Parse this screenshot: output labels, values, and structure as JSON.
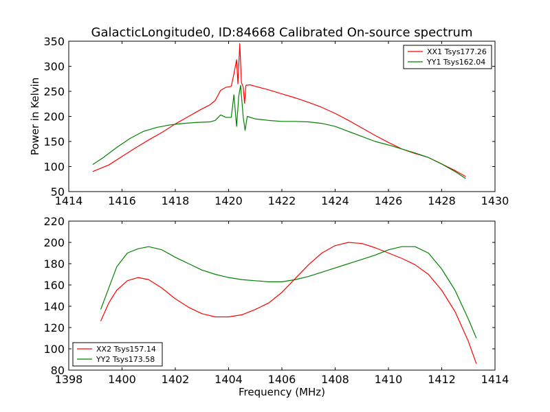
{
  "title": "GalacticLongitude0, ID:84668 Calibrated On-source spectrum",
  "colors": {
    "xx": "#ff0000",
    "yy": "#008000"
  },
  "chart_data": [
    {
      "type": "line",
      "xlim": [
        1414,
        1430
      ],
      "ylim": [
        50,
        350
      ],
      "xticks": [
        1414,
        1416,
        1418,
        1420,
        1422,
        1424,
        1426,
        1428,
        1430
      ],
      "yticks": [
        50,
        100,
        150,
        200,
        250,
        300,
        350
      ],
      "xlabel": "",
      "ylabel": "Power in Kelvin",
      "legend": "top-right",
      "grid": false,
      "series": [
        {
          "name": "XX1 Tsys177.26",
          "color": "#ff0000",
          "points": [
            [
              1414.9,
              90
            ],
            [
              1415.5,
              103
            ],
            [
              1416.0,
              120
            ],
            [
              1416.5,
              137
            ],
            [
              1417.0,
              153
            ],
            [
              1417.5,
              168
            ],
            [
              1418.0,
              185
            ],
            [
              1418.5,
              200
            ],
            [
              1419.0,
              215
            ],
            [
              1419.3,
              223
            ],
            [
              1419.5,
              232
            ],
            [
              1419.7,
              252
            ],
            [
              1419.9,
              258
            ],
            [
              1420.1,
              260
            ],
            [
              1420.2,
              285
            ],
            [
              1420.3,
              313
            ],
            [
              1420.35,
              265
            ],
            [
              1420.42,
              345
            ],
            [
              1420.48,
              268
            ],
            [
              1420.55,
              258
            ],
            [
              1420.6,
              226
            ],
            [
              1420.65,
              262
            ],
            [
              1420.8,
              263
            ],
            [
              1421.0,
              260
            ],
            [
              1421.5,
              253
            ],
            [
              1422.0,
              245
            ],
            [
              1422.5,
              237
            ],
            [
              1423.0,
              228
            ],
            [
              1423.5,
              218
            ],
            [
              1424.0,
              206
            ],
            [
              1424.5,
              192
            ],
            [
              1425.0,
              177
            ],
            [
              1425.5,
              162
            ],
            [
              1426.0,
              148
            ],
            [
              1426.5,
              135
            ],
            [
              1427.0,
              126
            ],
            [
              1427.5,
              118
            ],
            [
              1428.0,
              105
            ],
            [
              1428.5,
              92
            ],
            [
              1428.9,
              80
            ]
          ]
        },
        {
          "name": "YY1 Tsys162.04",
          "color": "#008000",
          "points": [
            [
              1414.9,
              104
            ],
            [
              1415.3,
              118
            ],
            [
              1415.8,
              138
            ],
            [
              1416.3,
              156
            ],
            [
              1416.8,
              170
            ],
            [
              1417.3,
              178
            ],
            [
              1417.8,
              183
            ],
            [
              1418.3,
              186
            ],
            [
              1418.8,
              188
            ],
            [
              1419.3,
              189
            ],
            [
              1419.5,
              192
            ],
            [
              1419.7,
              203
            ],
            [
              1419.9,
              198
            ],
            [
              1420.1,
              198
            ],
            [
              1420.2,
              243
            ],
            [
              1420.3,
              180
            ],
            [
              1420.38,
              240
            ],
            [
              1420.45,
              262
            ],
            [
              1420.55,
              198
            ],
            [
              1420.62,
              172
            ],
            [
              1420.7,
              200
            ],
            [
              1421.0,
              195
            ],
            [
              1421.5,
              192
            ],
            [
              1422.0,
              190
            ],
            [
              1422.5,
              190
            ],
            [
              1423.0,
              189
            ],
            [
              1423.5,
              186
            ],
            [
              1424.0,
              180
            ],
            [
              1424.5,
              170
            ],
            [
              1425.0,
              160
            ],
            [
              1425.5,
              150
            ],
            [
              1426.0,
              143
            ],
            [
              1426.5,
              135
            ],
            [
              1427.0,
              127
            ],
            [
              1427.5,
              118
            ],
            [
              1428.0,
              105
            ],
            [
              1428.5,
              90
            ],
            [
              1428.9,
              76
            ]
          ]
        }
      ]
    },
    {
      "type": "line",
      "xlim": [
        1398,
        1414
      ],
      "ylim": [
        80,
        220
      ],
      "xticks": [
        1398,
        1400,
        1402,
        1404,
        1406,
        1408,
        1410,
        1412,
        1414
      ],
      "yticks": [
        80,
        100,
        120,
        140,
        160,
        180,
        200,
        220
      ],
      "xlabel": "Frequency (MHz)",
      "ylabel": "",
      "legend": "bottom-left",
      "grid": false,
      "series": [
        {
          "name": "XX2 Tsys157.14",
          "color": "#ff0000",
          "points": [
            [
              1399.2,
              126
            ],
            [
              1399.5,
              143
            ],
            [
              1399.8,
              155
            ],
            [
              1400.2,
              164
            ],
            [
              1400.6,
              167
            ],
            [
              1401.0,
              165
            ],
            [
              1401.5,
              157
            ],
            [
              1402.0,
              147
            ],
            [
              1402.5,
              139
            ],
            [
              1403.0,
              133
            ],
            [
              1403.5,
              130
            ],
            [
              1404.0,
              130
            ],
            [
              1404.5,
              132
            ],
            [
              1405.0,
              137
            ],
            [
              1405.5,
              143
            ],
            [
              1406.0,
              153
            ],
            [
              1406.5,
              166
            ],
            [
              1407.0,
              179
            ],
            [
              1407.5,
              190
            ],
            [
              1408.0,
              197
            ],
            [
              1408.5,
              200
            ],
            [
              1409.0,
              199
            ],
            [
              1409.5,
              195
            ],
            [
              1410.0,
              190
            ],
            [
              1410.5,
              185
            ],
            [
              1411.0,
              179
            ],
            [
              1411.5,
              170
            ],
            [
              1412.0,
              155
            ],
            [
              1412.5,
              135
            ],
            [
              1413.0,
              107
            ],
            [
              1413.3,
              86
            ]
          ]
        },
        {
          "name": "YY2 Tsys173.58",
          "color": "#008000",
          "points": [
            [
              1399.2,
              137
            ],
            [
              1399.5,
              157
            ],
            [
              1399.8,
              177
            ],
            [
              1400.2,
              190
            ],
            [
              1400.6,
              194
            ],
            [
              1401.0,
              196
            ],
            [
              1401.5,
              193
            ],
            [
              1402.0,
              186
            ],
            [
              1402.5,
              180
            ],
            [
              1403.0,
              174
            ],
            [
              1403.5,
              170
            ],
            [
              1404.0,
              167
            ],
            [
              1404.5,
              165
            ],
            [
              1405.0,
              164
            ],
            [
              1405.5,
              163
            ],
            [
              1406.0,
              163
            ],
            [
              1406.5,
              165
            ],
            [
              1407.0,
              168
            ],
            [
              1407.5,
              172
            ],
            [
              1408.0,
              176
            ],
            [
              1408.5,
              180
            ],
            [
              1409.0,
              184
            ],
            [
              1409.5,
              188
            ],
            [
              1410.0,
              193
            ],
            [
              1410.5,
              196
            ],
            [
              1411.0,
              196
            ],
            [
              1411.5,
              190
            ],
            [
              1412.0,
              175
            ],
            [
              1412.5,
              155
            ],
            [
              1413.0,
              128
            ],
            [
              1413.3,
              110
            ]
          ]
        }
      ]
    }
  ]
}
